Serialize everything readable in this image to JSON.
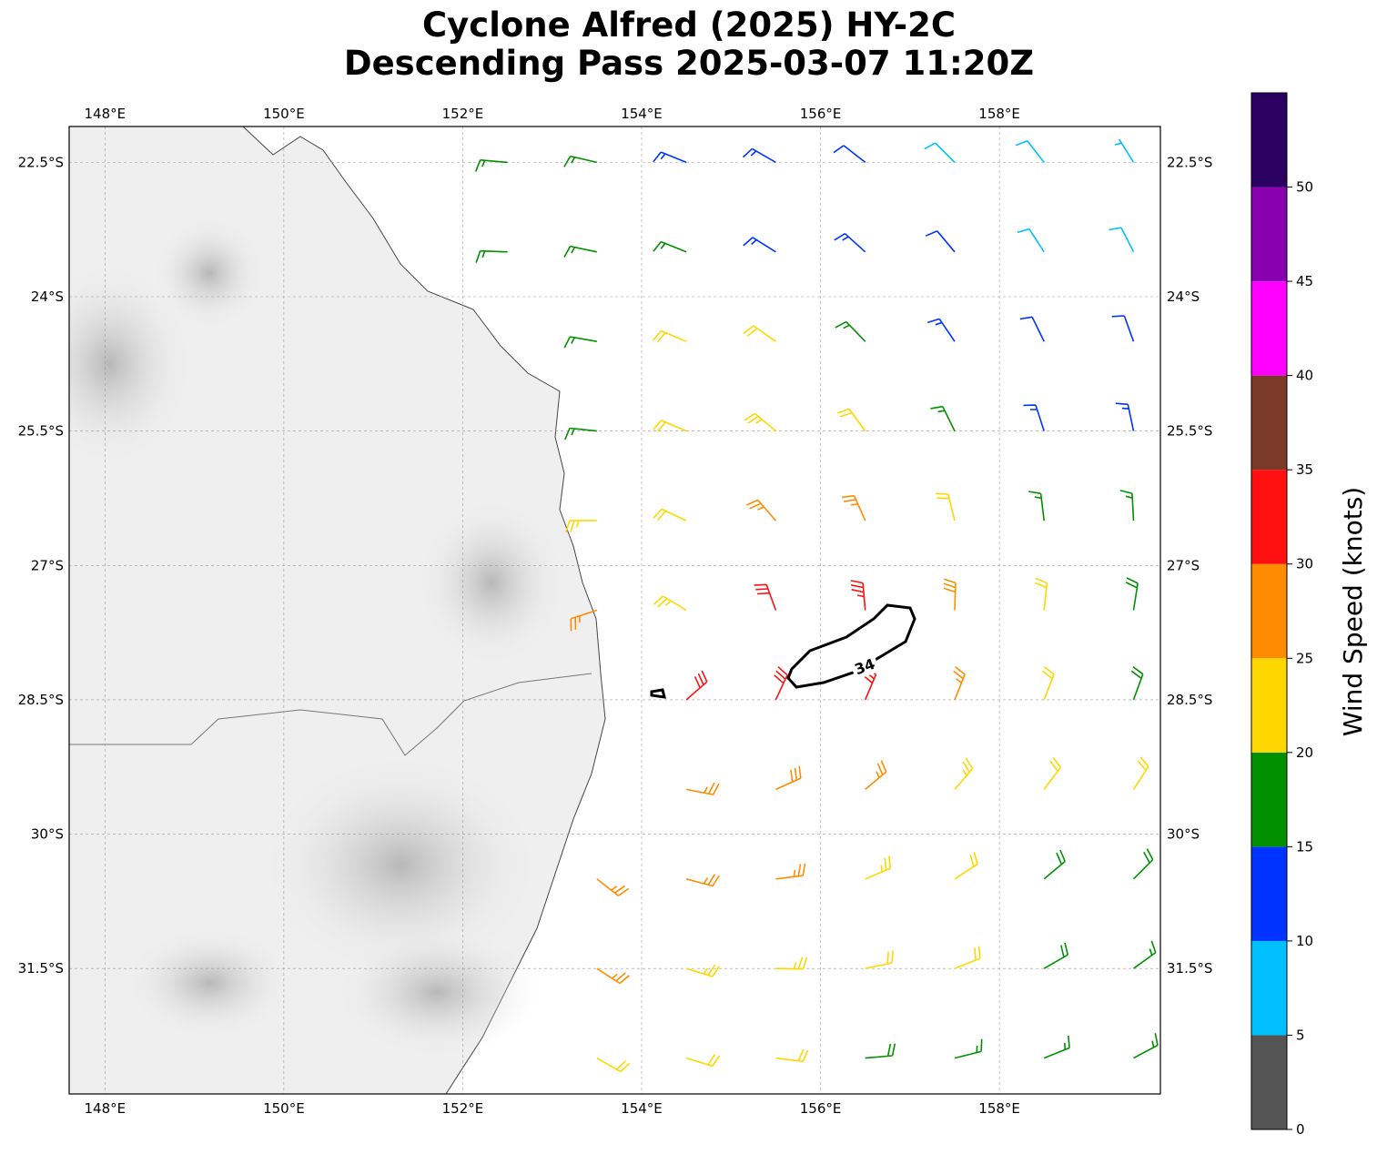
{
  "chart_data": {
    "type": "barbs",
    "title": "Cyclone Alfred (2025) HY-2C",
    "subtitle": "Descending Pass 2025-03-07 11:20Z",
    "xlim": [
      147.6,
      159.8
    ],
    "ylim": [
      -32.9,
      -22.1
    ],
    "xticks": [
      {
        "value": 148,
        "label": "148°E"
      },
      {
        "value": 150,
        "label": "150°E"
      },
      {
        "value": 152,
        "label": "152°E"
      },
      {
        "value": 154,
        "label": "154°E"
      },
      {
        "value": 156,
        "label": "156°E"
      },
      {
        "value": 158,
        "label": "158°E"
      }
    ],
    "yticks": [
      {
        "value": -22.5,
        "label": "22.5°S"
      },
      {
        "value": -24,
        "label": "24°S"
      },
      {
        "value": -25.5,
        "label": "25.5°S"
      },
      {
        "value": -27,
        "label": "27°S"
      },
      {
        "value": -28.5,
        "label": "28.5°S"
      },
      {
        "value": -30,
        "label": "30°S"
      },
      {
        "value": -31.5,
        "label": "31.5°S"
      }
    ],
    "grid": true,
    "contour": {
      "level": 34
    },
    "colorbar": {
      "label": "Wind Speed (knots)",
      "levels": [
        0,
        5,
        10,
        15,
        20,
        25,
        30,
        35,
        40,
        45,
        50,
        55
      ],
      "colors": [
        "#555555",
        "#00bfff",
        "#0033ff",
        "#009000",
        "#ffd700",
        "#ff8c00",
        "#ff1010",
        "#7b3a28",
        "#ff00ff",
        "#8800b0",
        "#2a0060"
      ],
      "ticks": [
        0,
        5,
        10,
        15,
        20,
        25,
        30,
        35,
        40,
        45,
        50
      ]
    },
    "barbs": {
      "lon": [
        152.5,
        153.5,
        154.5,
        155.5,
        156.5,
        157.5,
        158.5,
        159.5,
        152.5,
        153.5,
        154.5,
        155.5,
        156.5,
        157.5,
        158.5,
        159.5,
        153.5,
        154.5,
        155.5,
        156.5,
        157.5,
        158.5,
        159.5,
        153.5,
        154.5,
        155.5,
        156.5,
        157.5,
        158.5,
        159.5,
        153.5,
        154.5,
        155.5,
        156.5,
        157.5,
        158.5,
        159.5,
        153.5,
        154.5,
        155.5,
        156.5,
        157.5,
        158.5,
        159.5,
        154.5,
        155.5,
        156.5,
        157.5,
        158.5,
        159.5,
        154.5,
        155.5,
        156.5,
        157.5,
        158.5,
        159.5,
        153.5,
        154.5,
        155.5,
        156.5,
        157.5,
        158.5,
        159.5,
        153.5,
        154.5,
        155.5,
        156.5,
        157.5,
        158.5,
        159.5,
        153.5,
        154.5,
        155.5,
        156.5,
        157.5,
        158.5,
        159.5
      ],
      "lat": [
        -22.5,
        -22.5,
        -22.5,
        -22.5,
        -22.5,
        -22.5,
        -22.5,
        -22.5,
        -23.5,
        -23.5,
        -23.5,
        -23.5,
        -23.5,
        -23.5,
        -23.5,
        -23.5,
        -24.5,
        -24.5,
        -24.5,
        -24.5,
        -24.5,
        -24.5,
        -24.5,
        -25.5,
        -25.5,
        -25.5,
        -25.5,
        -25.5,
        -25.5,
        -25.5,
        -26.5,
        -26.5,
        -26.5,
        -26.5,
        -26.5,
        -26.5,
        -26.5,
        -27.5,
        -27.5,
        -27.5,
        -27.5,
        -27.5,
        -27.5,
        -27.5,
        -28.5,
        -28.5,
        -28.5,
        -28.5,
        -28.5,
        -28.5,
        -29.5,
        -29.5,
        -29.5,
        -29.5,
        -29.5,
        -29.5,
        -30.5,
        -30.5,
        -30.5,
        -30.5,
        -30.5,
        -30.5,
        -30.5,
        -31.5,
        -31.5,
        -31.5,
        -31.5,
        -31.5,
        -31.5,
        -31.5,
        -32.5,
        -32.5,
        -32.5,
        -32.5,
        -32.5,
        -32.5,
        -32.5
      ],
      "speed": [
        17,
        17,
        13,
        13,
        12,
        8,
        8,
        7,
        15,
        17,
        17,
        14,
        13,
        12,
        8,
        8,
        17,
        20,
        22,
        17,
        13,
        12,
        12,
        17,
        20,
        23,
        20,
        17,
        13,
        13,
        23,
        22,
        25,
        27,
        20,
        17,
        17,
        27,
        23,
        30,
        34,
        28,
        22,
        18,
        30,
        32,
        30,
        25,
        22,
        18,
        25,
        28,
        27,
        23,
        22,
        20,
        27,
        25,
        25,
        23,
        22,
        18,
        18,
        25,
        23,
        23,
        22,
        20,
        18,
        17,
        22,
        22,
        20,
        18,
        17,
        17,
        15
      ],
      "direction": [
        275,
        283,
        292,
        300,
        308,
        315,
        322,
        328,
        272,
        282,
        292,
        302,
        312,
        320,
        327,
        333,
        280,
        293,
        305,
        316,
        326,
        334,
        340,
        276,
        293,
        310,
        324,
        334,
        342,
        348,
        270,
        295,
        319,
        336,
        346,
        353,
        357,
        252,
        301,
        340,
        355,
        2,
        6,
        9,
        49,
        25,
        23,
        22,
        21,
        20,
        101,
        66,
        50,
        41,
        37,
        33,
        128,
        105,
        83,
        67,
        57,
        50,
        45,
        123,
        107,
        91,
        78,
        68,
        60,
        54,
        120,
        107,
        97,
        85,
        76,
        68,
        62
      ]
    }
  }
}
